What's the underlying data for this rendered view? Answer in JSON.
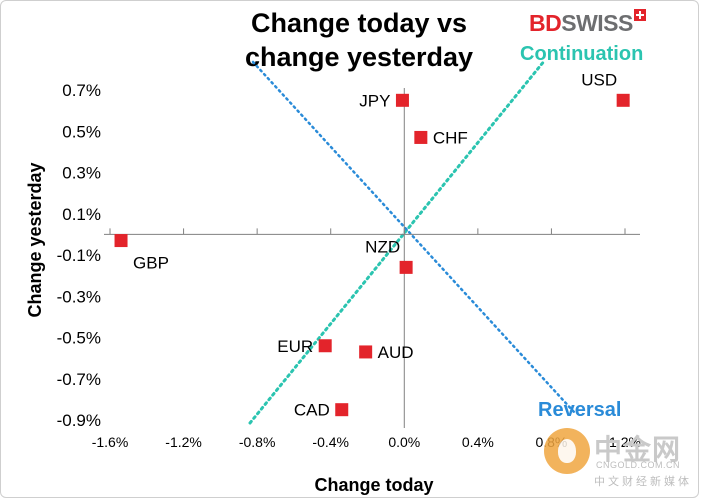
{
  "chart_data": {
    "type": "scatter",
    "title_lines": [
      "Change today vs",
      "change yesterday"
    ],
    "xlabel": "Change today",
    "ylabel": "Change yesterday",
    "xlim": [
      -1.6,
      1.2
    ],
    "ylim": [
      -0.9,
      0.7
    ],
    "x_ticks": [
      {
        "value": -1.6,
        "label": "-1.6%"
      },
      {
        "value": -1.2,
        "label": "-1.2%"
      },
      {
        "value": -0.8,
        "label": "-0.8%"
      },
      {
        "value": -0.4,
        "label": "-0.4%"
      },
      {
        "value": 0.0,
        "label": "0.0%"
      },
      {
        "value": 0.4,
        "label": "0.4%"
      },
      {
        "value": 0.8,
        "label": "0.8%"
      },
      {
        "value": 1.2,
        "label": "1.2%"
      }
    ],
    "y_ticks": [
      {
        "value": 0.7,
        "label": "0.7%"
      },
      {
        "value": 0.5,
        "label": "0.5%"
      },
      {
        "value": 0.3,
        "label": "0.3%"
      },
      {
        "value": 0.1,
        "label": "0.1%"
      },
      {
        "value": -0.1,
        "label": "-0.1%"
      },
      {
        "value": -0.3,
        "label": "-0.3%"
      },
      {
        "value": -0.5,
        "label": "-0.5%"
      },
      {
        "value": -0.7,
        "label": "-0.7%"
      },
      {
        "value": -0.9,
        "label": "-0.9%"
      }
    ],
    "points": [
      {
        "label": "USD",
        "x": 1.19,
        "y": 0.65,
        "label_pos": "above-left"
      },
      {
        "label": "JPY",
        "x": -0.01,
        "y": 0.65,
        "label_pos": "left"
      },
      {
        "label": "CHF",
        "x": 0.09,
        "y": 0.47,
        "label_pos": "right"
      },
      {
        "label": "GBP",
        "x": -1.54,
        "y": -0.03,
        "label_pos": "below-right"
      },
      {
        "label": "NZD",
        "x": 0.01,
        "y": -0.16,
        "label_pos": "above-left"
      },
      {
        "label": "EUR",
        "x": -0.43,
        "y": -0.54,
        "label_pos": "left"
      },
      {
        "label": "AUD",
        "x": -0.21,
        "y": -0.57,
        "label_pos": "right"
      },
      {
        "label": "CAD",
        "x": -0.34,
        "y": -0.85,
        "label_pos": "left"
      }
    ],
    "marker_color": "#e3242b",
    "grid": false,
    "legend": "none",
    "annotations": {
      "continuation": {
        "text": "Continuation",
        "color": "#2bc4b0"
      },
      "reversal": {
        "text": "Reversal",
        "color": "#2a8bd8"
      }
    }
  },
  "brand": {
    "logo_red": "BD",
    "logo_gray": "SWISS",
    "logo_mark": "swiss-cross-icon"
  },
  "watermark": {
    "big": "中金网",
    "url": "CNGOLD.COM.CN",
    "sub": "中文财经新媒体"
  }
}
